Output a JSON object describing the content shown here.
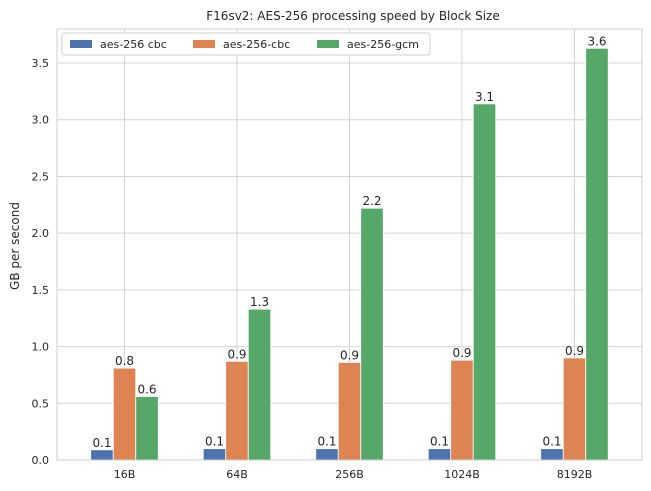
{
  "chart_data": {
    "type": "bar",
    "title": "F16sv2: AES-256 processing speed by Block Size",
    "xlabel": "",
    "ylabel": "GB per second",
    "categories": [
      "16B",
      "64B",
      "256B",
      "1024B",
      "8192B"
    ],
    "series": [
      {
        "name": "aes-256 cbc",
        "color": "#4c72b0",
        "values": [
          0.09,
          0.1,
          0.1,
          0.1,
          0.1
        ],
        "labels": [
          "0.1",
          "0.1",
          "0.1",
          "0.1",
          "0.1"
        ]
      },
      {
        "name": "aes-256-cbc",
        "color": "#dd8452",
        "values": [
          0.81,
          0.87,
          0.86,
          0.88,
          0.9
        ],
        "labels": [
          "0.8",
          "0.9",
          "0.9",
          "0.9",
          "0.9"
        ]
      },
      {
        "name": "aes-256-gcm",
        "color": "#55a868",
        "values": [
          0.56,
          1.33,
          2.22,
          3.14,
          3.63
        ],
        "labels": [
          "0.6",
          "1.3",
          "2.2",
          "3.1",
          "3.6"
        ]
      }
    ],
    "ylim": [
      0,
      3.8
    ],
    "yticks": [
      0.0,
      0.5,
      1.0,
      1.5,
      2.0,
      2.5,
      3.0,
      3.5
    ],
    "ytick_labels": [
      "0.0",
      "0.5",
      "1.0",
      "1.5",
      "2.0",
      "2.5",
      "3.0",
      "3.5"
    ],
    "grid": true,
    "legend": {
      "position": "top-left",
      "columns": 3
    }
  }
}
